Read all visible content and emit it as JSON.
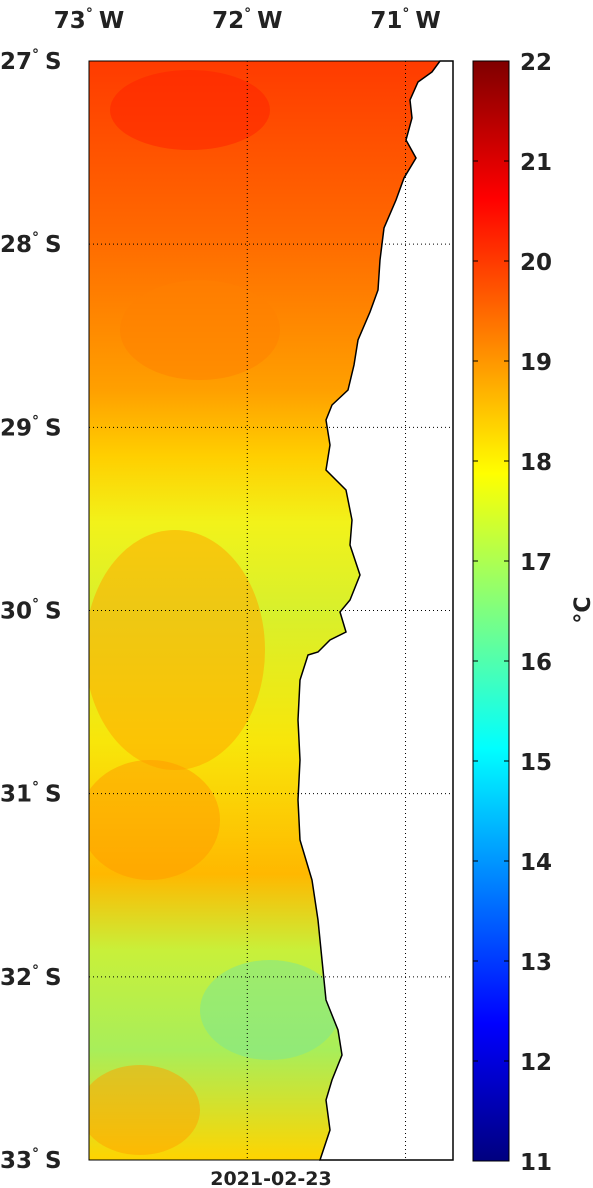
{
  "map": {
    "date": "2021-02-23",
    "lon_labels": [
      {
        "deg": "73",
        "dir": "W",
        "lon": -73
      },
      {
        "deg": "72",
        "dir": "W",
        "lon": -72
      },
      {
        "deg": "71",
        "dir": "W",
        "lon": -71
      }
    ],
    "lat_labels": [
      {
        "deg": "27",
        "dir": "S",
        "lat": -27
      },
      {
        "deg": "28",
        "dir": "S",
        "lat": -28
      },
      {
        "deg": "29",
        "dir": "S",
        "lat": -29
      },
      {
        "deg": "30",
        "dir": "S",
        "lat": -30
      },
      {
        "deg": "31",
        "dir": "S",
        "lat": -31
      },
      {
        "deg": "32",
        "dir": "S",
        "lat": -32
      },
      {
        "deg": "33",
        "dir": "S",
        "lat": -33
      }
    ],
    "degree_symbol": "°",
    "land_color": "#ffffff",
    "coast_color": "#000000"
  },
  "colorbar": {
    "unit_label": "°C",
    "min": 11,
    "max": 22,
    "ticks": [
      "22",
      "21",
      "20",
      "19",
      "18",
      "17",
      "16",
      "15",
      "14",
      "13",
      "12",
      "11"
    ],
    "colormap": "jet",
    "colors": [
      "#00007f",
      "#0000ff",
      "#007fff",
      "#00ffff",
      "#7fff7f",
      "#ffff00",
      "#ff7f00",
      "#ff0000",
      "#7f0000"
    ]
  }
}
